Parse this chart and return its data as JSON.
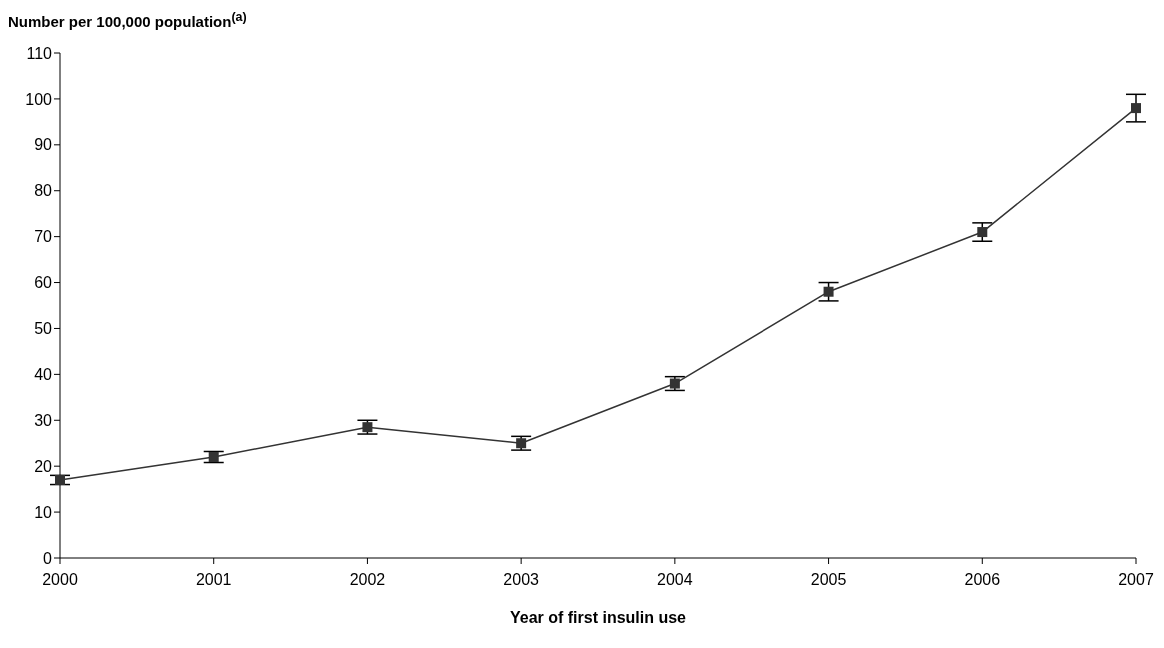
{
  "chart_data": {
    "type": "line",
    "ylabel": "Number per 100,000 population$^{(a)}$",
    "xlabel": "Year of first insulin use",
    "categories": [
      "2000",
      "2001",
      "2002",
      "2003",
      "2004",
      "2005",
      "2006",
      "2007"
    ],
    "series": [
      {
        "color": "#333333",
        "values": [
          17,
          22,
          28.5,
          25,
          38,
          58,
          71,
          98
        ],
        "errors": [
          1,
          1.2,
          1.5,
          1.5,
          1.5,
          2,
          2,
          3
        ]
      }
    ],
    "ylim": [
      0,
      110
    ],
    "yticks": [
      0,
      10,
      20,
      30,
      40,
      50,
      60,
      70,
      80,
      90,
      100,
      110
    ],
    "marker": "square",
    "line_style": "solid",
    "grid": false,
    "legend": false
  }
}
